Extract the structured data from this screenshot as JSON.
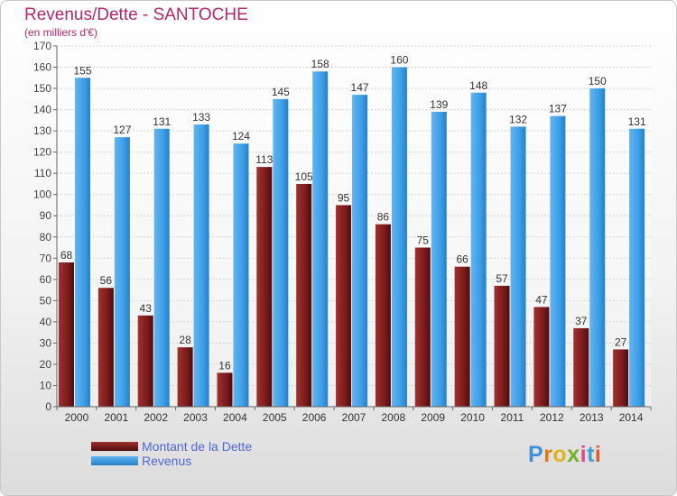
{
  "header": {
    "title": "Revenus/Dette - SANTOCHE",
    "subtitle": "(en milliers d'€)"
  },
  "colors": {
    "dette": "#7a1c1c",
    "revenus": "#3d9ee6",
    "title": "#b0286d",
    "legend_text": "#4f67d8"
  },
  "legend": {
    "items": [
      {
        "label": "Montant de la Dette",
        "color": "#7a1c1c"
      },
      {
        "label": "Revenus",
        "color": "#3d9ee6"
      }
    ]
  },
  "logo": {
    "text": "Proxiti"
  },
  "chart_data": {
    "type": "bar",
    "title": "Revenus/Dette - SANTOCHE",
    "subtitle": "(en milliers d'€)",
    "xlabel": "",
    "ylabel": "",
    "categories": [
      "2000",
      "2001",
      "2002",
      "2003",
      "2004",
      "2005",
      "2006",
      "2007",
      "2008",
      "2009",
      "2010",
      "2011",
      "2012",
      "2013",
      "2014"
    ],
    "series": [
      {
        "name": "Montant de la Dette",
        "color": "#7a1c1c",
        "values": [
          68,
          56,
          43,
          28,
          16,
          113,
          105,
          95,
          86,
          75,
          66,
          57,
          47,
          37,
          27
        ]
      },
      {
        "name": "Revenus",
        "color": "#3d9ee6",
        "values": [
          155,
          127,
          131,
          133,
          124,
          145,
          158,
          147,
          160,
          139,
          148,
          132,
          137,
          150,
          131
        ]
      }
    ],
    "ylim": [
      0,
      170
    ],
    "yticks": [
      0,
      10,
      20,
      30,
      40,
      50,
      60,
      70,
      80,
      90,
      100,
      110,
      120,
      130,
      140,
      150,
      160,
      170
    ],
    "grid": true,
    "legend_position": "bottom-left"
  }
}
